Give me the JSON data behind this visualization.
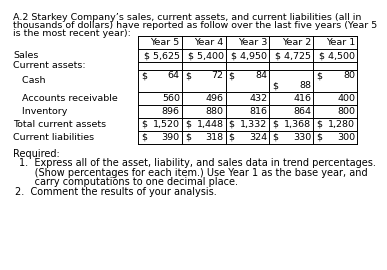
{
  "title_line1": "A.2 Starkey Company’s sales, current assets, and current liabilities (all in",
  "title_line2": "thousands of dollars) have reported as follow over the last five years (Year 5",
  "title_line3": "is the most recent year):",
  "col_headers": [
    "Year 5",
    "Year 4",
    "Year 3",
    "Year 2",
    "Year 1"
  ],
  "sales": [
    "$ 5,625",
    "$ 5,400",
    "$ 4,950",
    "$ 4,725",
    "$ 4,500"
  ],
  "cash_top": [
    "$   64",
    "$   72",
    "$   84",
    "",
    "$   80"
  ],
  "cash_y2": "$  88",
  "ar": [
    "560",
    "496",
    "432",
    "416",
    "400"
  ],
  "inv": [
    "896",
    "880",
    "816",
    "864",
    "800"
  ],
  "tca": [
    "$ 1,520",
    "$ 1,448",
    "$ 1,332",
    "$ 1,368",
    "$ 1,280"
  ],
  "cl": [
    "$  390",
    "$  318",
    "$  324",
    "$  330",
    "$  300"
  ],
  "required_text": "Required:",
  "req1a": "1.  Express all of the asset, liability, and sales data in trend percentages.",
  "req1b": "     (Show percentages for each item.) Use Year 1 as the base year, and",
  "req1c": "     carry computations to one decimal place.",
  "req2": "2.  Comment the results of your analysis.",
  "bg_color": "#ffffff",
  "border_color": "#000000",
  "font_color": "#000000",
  "fs_title": 6.8,
  "fs_table": 6.8,
  "fs_req": 7.0
}
